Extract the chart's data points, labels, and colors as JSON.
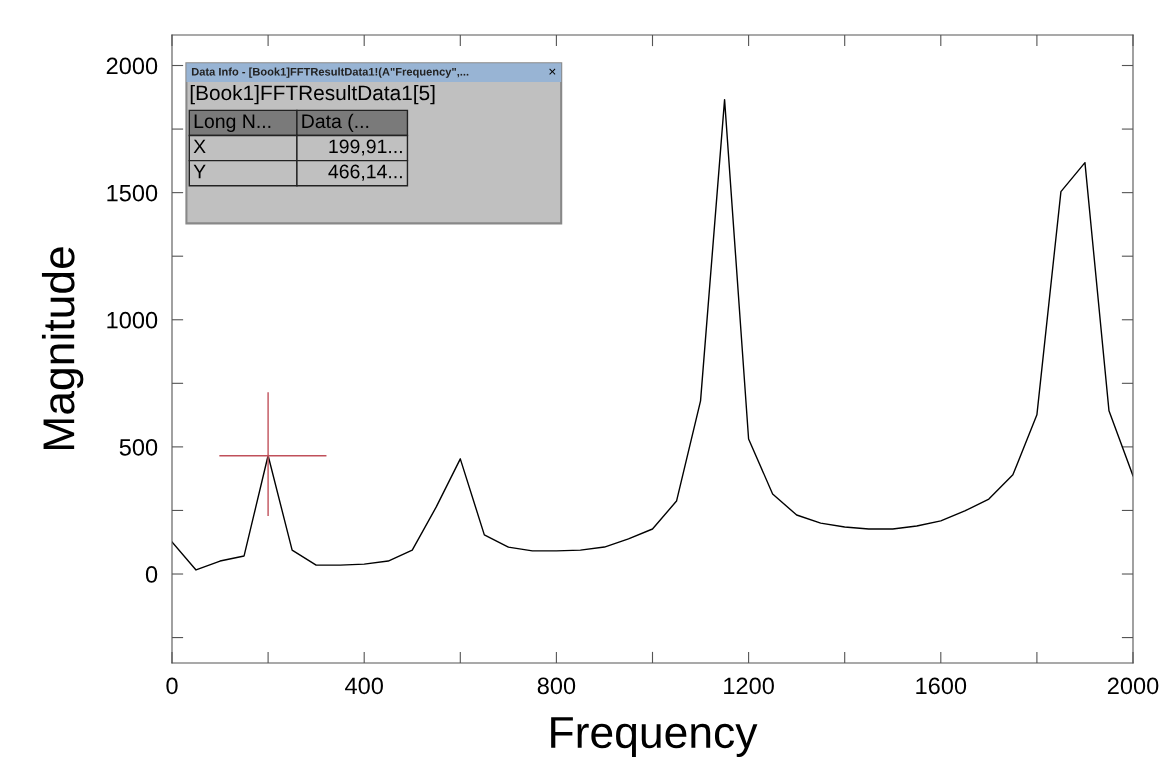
{
  "chart_data": {
    "type": "line",
    "xlabel": "Frequency",
    "ylabel": "Magnitude",
    "x": [
      0,
      50,
      100,
      150,
      200,
      250,
      300,
      350,
      400,
      450,
      500,
      550,
      600,
      650,
      700,
      750,
      800,
      850,
      900,
      950,
      1000,
      1050,
      1100,
      1150,
      1200,
      1250,
      1300,
      1350,
      1400,
      1450,
      1500,
      1550,
      1600,
      1650,
      1700,
      1750,
      1800,
      1850,
      1900,
      1950,
      2000
    ],
    "series": [
      {
        "color": "#000000",
        "values": [
          126,
          16,
          51,
          71,
          466,
          94,
          35,
          35,
          39,
          51,
          94,
          264,
          453,
          154,
          106,
          91,
          91,
          94,
          106,
          138,
          177,
          287,
          681,
          1866,
          531,
          315,
          232,
          200,
          185,
          177,
          177,
          189,
          209,
          248,
          295,
          390,
          626,
          1504,
          1618,
          642,
          386
        ]
      }
    ],
    "xlim": [
      0,
      2000
    ],
    "ylim": [
      -350,
      2120
    ],
    "xticks": [
      0,
      {
        "value": 200,
        "label": null
      },
      400,
      {
        "value": 600,
        "label": null
      },
      800,
      {
        "value": 1000,
        "label": null
      },
      1200,
      {
        "value": 1400,
        "label": null
      },
      1600,
      {
        "value": 1800,
        "label": null
      },
      2000
    ],
    "yticks": [
      {
        "value": -250,
        "label": null
      },
      0,
      {
        "value": 250,
        "label": null
      },
      500,
      {
        "value": 750,
        "label": null
      },
      1000,
      {
        "value": 1250,
        "label": null
      },
      1500,
      {
        "value": 1750,
        "label": null
      },
      2000
    ],
    "grid": false,
    "legend": false,
    "marker": "none",
    "line_style": "solid",
    "annotations": [
      "Data Info - [Book1]FFTResultData1!(A\"Frequency\",...",
      "×",
      "[Book1]FFTResultData1[5]",
      "Long N...",
      "Data (...",
      "X",
      "199,91...",
      "Y",
      "466,14..."
    ]
  }
}
